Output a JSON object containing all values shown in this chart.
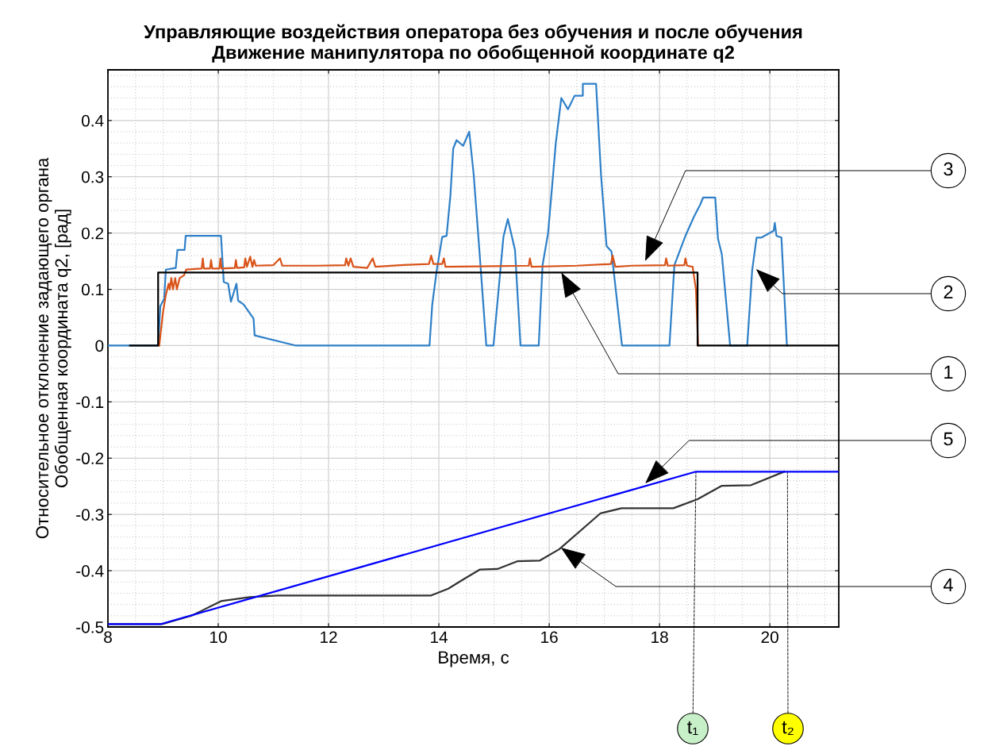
{
  "chart_data": {
    "type": "line",
    "title": "Управляющие воздействия оператора без обучения и после обучения\nДвижение манипулятора по обобщенной координате q2",
    "xlabel": "Время, с",
    "ylabel": "Относительное отклонение задающего органа\nОбобщенная координата q2, [рад]",
    "xlim": [
      8,
      21.25
    ],
    "ylim": [
      -0.5,
      0.49
    ],
    "xticks": [
      8,
      10,
      12,
      14,
      16,
      18,
      20
    ],
    "yticks": [
      -0.5,
      -0.4,
      -0.3,
      -0.2,
      -0.1,
      0,
      0.1,
      0.2,
      0.3,
      0.4
    ],
    "grid": true,
    "line_style": "solid",
    "marker": "none",
    "series": [
      {
        "color": "#2f80c8",
        "x": [
          8.0,
          8.91,
          8.95,
          9.02,
          9.05,
          9.23,
          9.26,
          9.39,
          9.41,
          10.05,
          10.1,
          10.18,
          10.23,
          10.33,
          10.36,
          10.46,
          10.64,
          10.66,
          11.41,
          13.83,
          13.88,
          13.96,
          14.06,
          14.14,
          14.21,
          14.26,
          14.32,
          14.44,
          14.55,
          14.63,
          14.73,
          14.86,
          14.99,
          15.1,
          15.17,
          15.25,
          15.38,
          15.48,
          15.81,
          15.88,
          15.98,
          16.12,
          16.22,
          16.34,
          16.46,
          16.61,
          16.61,
          16.85,
          16.94,
          17.04,
          17.13,
          17.32,
          18.18,
          18.27,
          18.47,
          18.62,
          18.74,
          18.79,
          19.01,
          19.06,
          19.13,
          19.28,
          19.59,
          19.68,
          19.76,
          19.85,
          20.07,
          20.09,
          20.12,
          20.21,
          20.31
        ],
        "values": [
          0,
          0,
          0.07,
          0.083,
          0.135,
          0.138,
          0.17,
          0.17,
          0.195,
          0.195,
          0.113,
          0.11,
          0.078,
          0.11,
          0.08,
          0.073,
          0.048,
          0.018,
          0,
          0,
          0.073,
          0.133,
          0.193,
          0.195,
          0.268,
          0.35,
          0.365,
          0.355,
          0.38,
          0.305,
          0.175,
          0,
          0,
          0.118,
          0.193,
          0.225,
          0.17,
          0,
          0,
          0.143,
          0.2,
          0.36,
          0.44,
          0.42,
          0.444,
          0.444,
          0.465,
          0.465,
          0.303,
          0.177,
          0.167,
          0,
          0,
          0.143,
          0.195,
          0.228,
          0.251,
          0.263,
          0.263,
          0.19,
          0.162,
          0,
          0,
          0.134,
          0.192,
          0.192,
          0.204,
          0.218,
          0.195,
          0.192,
          0
        ]
      },
      {
        "color": "#d95319",
        "x": [
          8.93,
          9.0,
          9.05,
          9.1,
          9.12,
          9.15,
          9.18,
          9.22,
          9.25,
          9.3,
          9.38,
          9.42,
          9.7,
          9.72,
          9.74,
          9.85,
          9.87,
          9.89,
          10.02,
          10.04,
          10.06,
          10.3,
          10.32,
          10.34,
          10.47,
          10.49,
          10.52,
          10.58,
          10.62,
          10.65,
          10.68,
          11.0,
          11.12,
          11.16,
          11.8,
          12.3,
          12.32,
          12.36,
          12.4,
          12.45,
          12.7,
          12.8,
          12.85,
          13.3,
          13.82,
          13.86,
          13.9,
          14.06,
          14.09,
          14.12,
          15.0,
          15.63,
          15.65,
          15.68,
          16.5,
          17.12,
          17.15,
          17.2,
          17.5,
          18.1,
          18.12,
          18.15,
          18.45,
          18.47,
          18.5,
          18.6,
          18.66,
          18.7
        ],
        "values": [
          0,
          0.06,
          0.09,
          0.11,
          0.1,
          0.12,
          0.1,
          0.12,
          0.1,
          0.12,
          0.125,
          0.135,
          0.137,
          0.155,
          0.137,
          0.137,
          0.152,
          0.137,
          0.137,
          0.155,
          0.137,
          0.138,
          0.152,
          0.138,
          0.139,
          0.155,
          0.14,
          0.158,
          0.14,
          0.152,
          0.142,
          0.143,
          0.155,
          0.142,
          0.142,
          0.143,
          0.155,
          0.142,
          0.155,
          0.14,
          0.138,
          0.155,
          0.14,
          0.143,
          0.145,
          0.16,
          0.145,
          0.145,
          0.155,
          0.14,
          0.141,
          0.142,
          0.155,
          0.14,
          0.142,
          0.145,
          0.16,
          0.14,
          0.142,
          0.143,
          0.155,
          0.142,
          0.143,
          0.155,
          0.142,
          0.14,
          0.1,
          0
        ]
      },
      {
        "color": "#000000",
        "x": [
          8.4,
          8.91,
          8.91,
          18.69,
          18.69,
          21.25
        ],
        "values": [
          0,
          0,
          0.13,
          0.13,
          0,
          0
        ]
      },
      {
        "color": "#333333",
        "x": [
          8.0,
          8.98,
          9.54,
          10.05,
          10.57,
          11.08,
          13.86,
          14.17,
          14.45,
          14.74,
          15.06,
          15.43,
          15.83,
          16.18,
          16.93,
          17.31,
          18.25,
          18.69,
          19.13,
          19.66,
          20.26
        ],
        "values": [
          -0.495,
          -0.495,
          -0.479,
          -0.454,
          -0.447,
          -0.444,
          -0.444,
          -0.432,
          -0.415,
          -0.398,
          -0.397,
          -0.383,
          -0.382,
          -0.362,
          -0.298,
          -0.289,
          -0.289,
          -0.273,
          -0.249,
          -0.248,
          -0.224
        ]
      },
      {
        "color": "#0000ff",
        "x": [
          8.0,
          8.95,
          18.66,
          21.25
        ],
        "values": [
          -0.495,
          -0.495,
          -0.224,
          -0.224
        ]
      }
    ],
    "annotations": [
      {
        "text": "3",
        "x": 17.74,
        "y": 0.15
      },
      {
        "text": "2",
        "x": 19.75,
        "y": 0.136
      },
      {
        "text": "1",
        "x": 16.22,
        "y": 0.13
      },
      {
        "text": "5",
        "x": 17.74,
        "y": -0.245
      },
      {
        "text": "4",
        "x": 16.21,
        "y": -0.359
      },
      {
        "text": "t₁",
        "x": 18.66,
        "y": -0.224
      },
      {
        "text": "t₂",
        "x": 20.32,
        "y": -0.224
      }
    ]
  }
}
